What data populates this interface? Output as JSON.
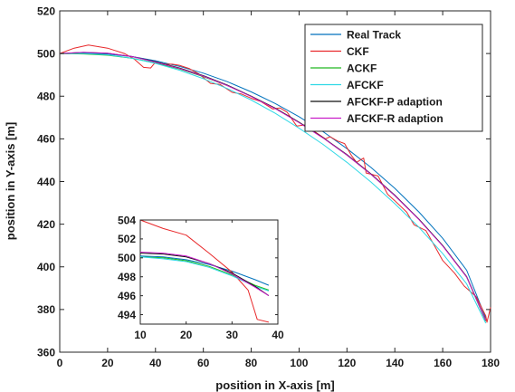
{
  "chart_data": [
    {
      "id": "main",
      "type": "line",
      "xlabel": "position in X-axis [m]",
      "ylabel": "position in Y-axis [m]",
      "xlim": [
        0,
        180
      ],
      "ylim": [
        360,
        520
      ],
      "xticks": [
        0,
        20,
        40,
        60,
        80,
        100,
        120,
        140,
        160,
        180
      ],
      "yticks": [
        360,
        380,
        400,
        420,
        440,
        460,
        480,
        500,
        520
      ],
      "grid": false,
      "legend_position": "top-right",
      "series": [
        {
          "name": "Real Track",
          "color": "#0072BD",
          "points": [
            [
              0,
              500
            ],
            [
              10,
              500.2
            ],
            [
              20,
              499.8
            ],
            [
              30,
              498.6
            ],
            [
              40,
              496.6
            ],
            [
              50,
              494
            ],
            [
              60,
              490.8
            ],
            [
              70,
              486.8
            ],
            [
              80,
              482
            ],
            [
              90,
              476.6
            ],
            [
              100,
              470.4
            ],
            [
              110,
              463.4
            ],
            [
              120,
              455.4
            ],
            [
              130,
              446.6
            ],
            [
              140,
              436.8
            ],
            [
              150,
              425.8
            ],
            [
              160,
              413.4
            ],
            [
              170,
              398.4
            ],
            [
              178,
              376
            ]
          ]
        },
        {
          "name": "CKF",
          "color": "#E8292B",
          "points": [
            [
              0,
              500
            ],
            [
              6,
              502.5
            ],
            [
              12,
              504
            ],
            [
              20,
              502.5
            ],
            [
              27,
              500
            ],
            [
              31,
              497.5
            ],
            [
              35,
              493.5
            ],
            [
              38,
              493.2
            ],
            [
              40,
              496
            ],
            [
              44,
              495
            ],
            [
              47,
              495
            ],
            [
              50,
              494.5
            ],
            [
              54,
              493
            ],
            [
              58,
              490.5
            ],
            [
              63,
              486
            ],
            [
              67,
              485.5
            ],
            [
              72,
              481.8
            ],
            [
              76,
              481
            ],
            [
              80,
              479
            ],
            [
              84,
              477.5
            ],
            [
              89,
              474
            ],
            [
              92,
              474.5
            ],
            [
              95,
              472.5
            ],
            [
              99,
              466
            ],
            [
              103,
              466.6
            ],
            [
              107,
              463
            ],
            [
              111,
              460
            ],
            [
              113,
              461
            ],
            [
              116,
              459
            ],
            [
              119,
              457.8
            ],
            [
              122,
              452
            ],
            [
              124,
              449
            ],
            [
              127,
              451
            ],
            [
              128,
              444
            ],
            [
              133,
              442.6
            ],
            [
              137,
              434
            ],
            [
              140,
              431
            ],
            [
              145,
              425.6
            ],
            [
              148,
              419.7
            ],
            [
              153,
              417
            ],
            [
              157,
              409
            ],
            [
              160,
              403
            ],
            [
              165,
              397
            ],
            [
              169,
              391
            ],
            [
              174,
              386
            ],
            [
              178,
              377
            ],
            [
              178.5,
              374
            ],
            [
              180,
              381
            ]
          ]
        },
        {
          "name": "ACKF",
          "color": "#22B822",
          "points": [
            [
              0,
              500
            ],
            [
              10,
              499.8
            ],
            [
              20,
              499.2
            ],
            [
              30,
              497.8
            ],
            [
              40,
              495.6
            ],
            [
              50,
              492.8
            ],
            [
              60,
              489.2
            ],
            [
              70,
              485
            ],
            [
              80,
              480
            ],
            [
              90,
              474.4
            ],
            [
              100,
              467.8
            ],
            [
              110,
              460.5
            ],
            [
              120,
              452.4
            ],
            [
              130,
              443.4
            ],
            [
              140,
              433.4
            ],
            [
              150,
              422.4
            ],
            [
              160,
              410
            ],
            [
              170,
              395.2
            ],
            [
              178,
              374.5
            ]
          ]
        },
        {
          "name": "AFCKF",
          "color": "#2FD8E6",
          "points": [
            [
              0,
              500
            ],
            [
              10,
              500
            ],
            [
              20,
              499.4
            ],
            [
              30,
              497.8
            ],
            [
              40,
              495.4
            ],
            [
              50,
              492.2
            ],
            [
              60,
              488.2
            ],
            [
              70,
              483.6
            ],
            [
              80,
              478.2
            ],
            [
              90,
              472
            ],
            [
              100,
              465
            ],
            [
              110,
              457.4
            ],
            [
              120,
              449
            ],
            [
              130,
              439.8
            ],
            [
              140,
              429.6
            ],
            [
              150,
              418.6
            ],
            [
              160,
              406.2
            ],
            [
              170,
              392
            ],
            [
              178,
              373.6
            ]
          ]
        },
        {
          "name": "AFCKF-P adaption",
          "color": "#111111",
          "points": [
            [
              0,
              500
            ],
            [
              10,
              500.5
            ],
            [
              20,
              500.1
            ],
            [
              30,
              498.6
            ],
            [
              40,
              496.2
            ],
            [
              50,
              493.2
            ],
            [
              60,
              489.6
            ],
            [
              70,
              485.2
            ],
            [
              80,
              480
            ],
            [
              90,
              474.4
            ],
            [
              100,
              467.8
            ],
            [
              110,
              460.6
            ],
            [
              120,
              452.6
            ],
            [
              130,
              443.6
            ],
            [
              140,
              433.6
            ],
            [
              150,
              422.4
            ],
            [
              160,
              410
            ],
            [
              170,
              395.4
            ],
            [
              178,
              375
            ]
          ]
        },
        {
          "name": "AFCKF-R adaption",
          "color": "#C81CC8",
          "points": [
            [
              0,
              500
            ],
            [
              10,
              500.6
            ],
            [
              20,
              500.2
            ],
            [
              30,
              498.6
            ],
            [
              40,
              496
            ],
            [
              50,
              493
            ],
            [
              60,
              489.4
            ],
            [
              70,
              485
            ],
            [
              80,
              479.8
            ],
            [
              90,
              474.2
            ],
            [
              100,
              467.6
            ],
            [
              110,
              460.4
            ],
            [
              120,
              452.4
            ],
            [
              130,
              443.4
            ],
            [
              140,
              433.4
            ],
            [
              150,
              422.2
            ],
            [
              160,
              409.8
            ],
            [
              170,
              395.2
            ],
            [
              178,
              374.8
            ]
          ]
        }
      ]
    },
    {
      "id": "inset",
      "type": "line",
      "xlim": [
        10,
        40
      ],
      "ylim": [
        493,
        504
      ],
      "xticks": [
        10,
        20,
        30,
        40
      ],
      "yticks": [
        494,
        496,
        498,
        500,
        502,
        504
      ],
      "grid": false,
      "series": [
        {
          "name": "Real Track",
          "color": "#0072BD",
          "points": [
            [
              10,
              500.2
            ],
            [
              15,
              500.1
            ],
            [
              20,
              499.8
            ],
            [
              25,
              499.3
            ],
            [
              30,
              498.6
            ],
            [
              35,
              497.7
            ],
            [
              38,
              497.1
            ]
          ]
        },
        {
          "name": "CKF",
          "color": "#E8292B",
          "points": [
            [
              10,
              504
            ],
            [
              15,
              503.1
            ],
            [
              20,
              502.4
            ],
            [
              25,
              500.5
            ],
            [
              30,
              498.5
            ],
            [
              32,
              497.4
            ],
            [
              33.5,
              496.6
            ],
            [
              35.5,
              493.5
            ],
            [
              38,
              493.2
            ]
          ]
        },
        {
          "name": "ACKF",
          "color": "#22B822",
          "points": [
            [
              10,
              500.1
            ],
            [
              15,
              500
            ],
            [
              20,
              499.7
            ],
            [
              25,
              499.1
            ],
            [
              30,
              498.2
            ],
            [
              35,
              497.1
            ],
            [
              38,
              496.6
            ]
          ]
        },
        {
          "name": "AFCKF",
          "color": "#2FD8E6",
          "points": [
            [
              10,
              500.1
            ],
            [
              15,
              499.9
            ],
            [
              20,
              499.6
            ],
            [
              25,
              499
            ],
            [
              30,
              498.1
            ],
            [
              35,
              497
            ],
            [
              38,
              496.5
            ]
          ]
        },
        {
          "name": "AFCKF-P adaption",
          "color": "#111111",
          "points": [
            [
              10,
              500.5
            ],
            [
              15,
              500.4
            ],
            [
              20,
              500.1
            ],
            [
              25,
              499.4
            ],
            [
              30,
              498.4
            ],
            [
              35,
              497
            ],
            [
              38,
              496
            ]
          ]
        },
        {
          "name": "AFCKF-R adaption",
          "color": "#C81CC8",
          "points": [
            [
              10,
              500.6
            ],
            [
              15,
              500.5
            ],
            [
              20,
              500.2
            ],
            [
              25,
              499.4
            ],
            [
              30,
              498.3
            ],
            [
              35,
              496.9
            ],
            [
              38,
              496
            ]
          ]
        }
      ]
    }
  ]
}
